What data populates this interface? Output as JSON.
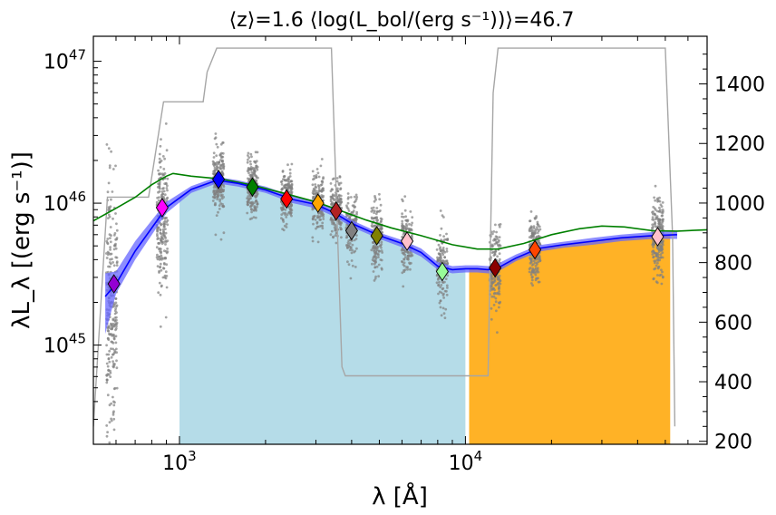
{
  "chart_data": {
    "type": "scatter",
    "title": "⟨z⟩=1.6 ⟨log(L_bol/(erg s⁻¹))⟩=46.7",
    "xlabel": "λ [Å]",
    "ylabel": "λL_λ [(erg s⁻¹)]",
    "x_scale": "log",
    "y_scale": "log",
    "xlim": [
      500,
      70000
    ],
    "ylim": [
      2e+44,
      1.5e+47
    ],
    "y2lim": [
      190,
      1560
    ],
    "x_ticks": [
      {
        "value": 1000,
        "base": "10",
        "exp": "3"
      },
      {
        "value": 10000,
        "base": "10",
        "exp": "4"
      }
    ],
    "y_ticks": [
      {
        "value": 1e+45,
        "base": "10",
        "exp": "45"
      },
      {
        "value": 1e+46,
        "base": "10",
        "exp": "46"
      },
      {
        "value": 1e+47,
        "base": "10",
        "exp": "47"
      }
    ],
    "y2_ticks": [
      "200",
      "400",
      "600",
      "800",
      "1000",
      "1200",
      "1400"
    ],
    "colors": {
      "median": "#0000ff",
      "band": "#6666ff",
      "model": "#008000",
      "count": "#a6a6a6",
      "scatter": "#808080",
      "uv_fill": "#add8e6",
      "ir_fill": "#ffa500"
    },
    "shaded_regions": [
      {
        "name": "uv",
        "x_range": [
          1000,
          10000
        ],
        "color": "#add8e6"
      },
      {
        "name": "ir",
        "x_range": [
          10300,
          52000
        ],
        "color": "#ffa500"
      }
    ],
    "median_sed": {
      "x": [
        550,
        600,
        700,
        900,
        1100,
        1350,
        1600,
        2000,
        2500,
        3000,
        3500,
        4000,
        5000,
        6000,
        7000,
        8000,
        9000,
        10000,
        11000,
        12000,
        13000,
        15000,
        18000,
        22000,
        28000,
        35000,
        45000,
        55000
      ],
      "y": [
        2.2e+45,
        2.7e+45,
        4.6e+45,
        9.3e+45,
        1.25e+46,
        1.45e+46,
        1.38e+46,
        1.24e+46,
        1.06e+46,
        9.8e+45,
        8.5e+45,
        7.2e+45,
        5.9e+45,
        5.2e+45,
        4.5e+45,
        3.6e+45,
        3.4e+45,
        3.45e+45,
        3.45e+45,
        3.4e+45,
        3.5e+45,
        4.1e+45,
        4.8e+45,
        5.1e+45,
        5.4e+45,
        5.7e+45,
        5.9e+45,
        6e+45
      ],
      "band_low": [
        1.2e+45,
        2.3e+45,
        4e+45,
        8.5e+45,
        1.18e+46,
        1.38e+46,
        1.31e+46,
        1.18e+46,
        1e+46,
        9.2e+45,
        8e+45,
        6.8e+45,
        5.6e+45,
        4.9e+45,
        4.2e+45,
        3.4e+45,
        3.2e+45,
        3.25e+45,
        3.25e+45,
        3.2e+45,
        3.3e+45,
        3.9e+45,
        4.55e+45,
        4.85e+45,
        5.1e+45,
        5.4e+45,
        5.6e+45,
        5.6e+45
      ],
      "band_high": [
        3.2e+45,
        3.3e+45,
        5.4e+45,
        1.02e+46,
        1.32e+46,
        1.53e+46,
        1.45e+46,
        1.31e+46,
        1.12e+46,
        1.04e+46,
        9e+45,
        7.6e+45,
        6.2e+45,
        5.5e+45,
        4.8e+45,
        3.85e+45,
        3.6e+45,
        3.65e+45,
        3.65e+45,
        3.6e+45,
        3.75e+45,
        4.35e+45,
        5.05e+45,
        5.35e+45,
        5.7e+45,
        6e+45,
        6.25e+45,
        6.4e+45
      ]
    },
    "model_sed": {
      "x": [
        500,
        600,
        700,
        800,
        900,
        950,
        1100,
        1400,
        1800,
        2300,
        3000,
        3800,
        4500,
        5500,
        7000,
        9000,
        11000,
        13000,
        16000,
        20000,
        25000,
        30000,
        36000,
        45000,
        55000,
        70000
      ],
      "y": [
        7.5e+45,
        9.2e+45,
        1.1e+46,
        1.35e+46,
        1.55e+46,
        1.62e+46,
        1.55e+46,
        1.48e+46,
        1.34e+46,
        1.18e+46,
        1.02e+46,
        8.6e+45,
        7.6e+45,
        6.7e+45,
        5.9e+45,
        5.1e+45,
        4.75e+45,
        4.75e+45,
        5.2e+45,
        6e+45,
        6.6e+45,
        6.9e+45,
        6.8e+45,
        6.4e+45,
        6.35e+45,
        6.5e+45
      ]
    },
    "count_curve": {
      "x": [
        500,
        560,
        600,
        780,
        880,
        1000,
        1210,
        1250,
        1350,
        1400,
        2000,
        3000,
        3400,
        3700,
        3800,
        10000,
        12000,
        12500,
        13000,
        14000,
        50000,
        53000,
        54000
      ],
      "y": [
        250,
        1020,
        1020,
        1020,
        1340,
        1340,
        1340,
        1440,
        1520,
        1520,
        1520,
        1520,
        1520,
        450,
        420,
        420,
        420,
        1370,
        1520,
        1520,
        1520,
        890,
        250
      ]
    },
    "photometric_points": [
      {
        "x": 590,
        "y": 2.7e+45,
        "color": "#9400d3"
      },
      {
        "x": 870,
        "y": 9.3e+45,
        "color": "#ff00ff"
      },
      {
        "x": 1370,
        "y": 1.47e+46,
        "color": "#0000ff"
      },
      {
        "x": 1800,
        "y": 1.3e+46,
        "color": "#008000"
      },
      {
        "x": 2370,
        "y": 1.07e+46,
        "color": "#ff0000"
      },
      {
        "x": 3050,
        "y": 1e+46,
        "color": "#ffa500"
      },
      {
        "x": 3530,
        "y": 8.8e+45,
        "color": "#b22222"
      },
      {
        "x": 4000,
        "y": 6.4e+45,
        "color": "#808080"
      },
      {
        "x": 4900,
        "y": 5.9e+45,
        "color": "#808000"
      },
      {
        "x": 6250,
        "y": 5.4e+45,
        "color": "#ffc0cb"
      },
      {
        "x": 8300,
        "y": 3.3e+45,
        "color": "#98fb98"
      },
      {
        "x": 12700,
        "y": 3.5e+45,
        "color": "#8b0000"
      },
      {
        "x": 17500,
        "y": 4.7e+45,
        "color": "#ff4500"
      },
      {
        "x": 47000,
        "y": 5.8e+45,
        "color": "#ffc0cb"
      }
    ],
    "scatter_columns": [
      {
        "x": 580,
        "center": 1.8e+45,
        "sigma_dex": 0.45,
        "n": 260
      },
      {
        "x": 870,
        "center": 7.5e+45,
        "sigma_dex": 0.22,
        "n": 230
      },
      {
        "x": 1370,
        "center": 1.45e+46,
        "sigma_dex": 0.12,
        "n": 200
      },
      {
        "x": 1800,
        "center": 1.35e+46,
        "sigma_dex": 0.11,
        "n": 200
      },
      {
        "x": 2370,
        "center": 1.1e+46,
        "sigma_dex": 0.1,
        "n": 180
      },
      {
        "x": 3050,
        "center": 1.05e+46,
        "sigma_dex": 0.11,
        "n": 170
      },
      {
        "x": 3530,
        "center": 9e+45,
        "sigma_dex": 0.11,
        "n": 150
      },
      {
        "x": 4000,
        "center": 6.6e+45,
        "sigma_dex": 0.12,
        "n": 140
      },
      {
        "x": 4900,
        "center": 6e+45,
        "sigma_dex": 0.12,
        "n": 160
      },
      {
        "x": 6250,
        "center": 5.4e+45,
        "sigma_dex": 0.11,
        "n": 160
      },
      {
        "x": 8300,
        "center": 3.6e+45,
        "sigma_dex": 0.13,
        "n": 150
      },
      {
        "x": 12700,
        "center": 3.4e+45,
        "sigma_dex": 0.14,
        "n": 170
      },
      {
        "x": 17500,
        "center": 4.7e+45,
        "sigma_dex": 0.11,
        "n": 200
      },
      {
        "x": 47000,
        "center": 5.6e+45,
        "sigma_dex": 0.13,
        "n": 230
      }
    ]
  }
}
